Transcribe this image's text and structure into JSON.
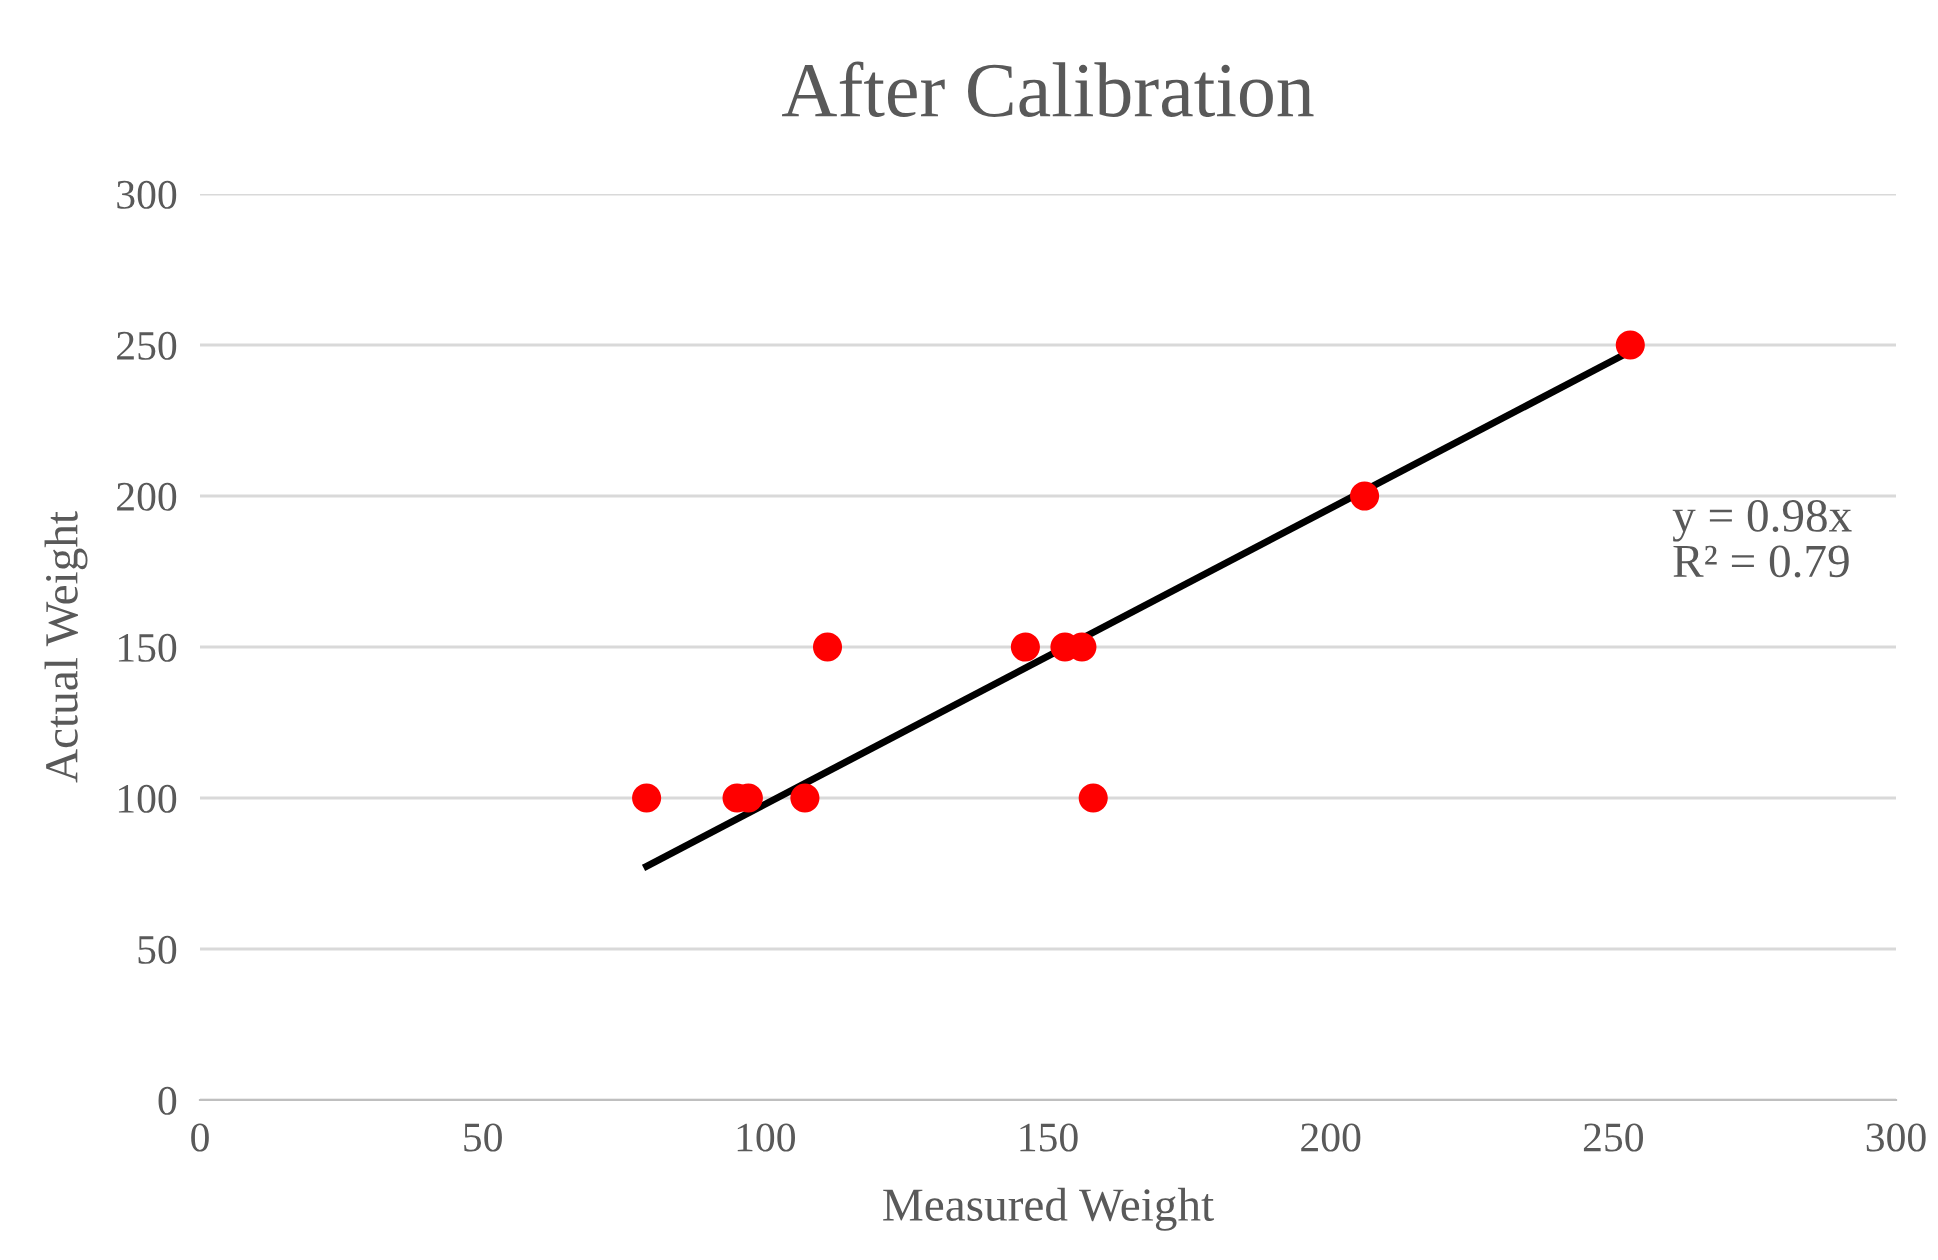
{
  "chart_data": {
    "type": "scatter",
    "title": "After Calibration",
    "xlabel": "Measured Weight",
    "ylabel": "Actual Weight",
    "xlim": [
      0,
      300
    ],
    "xticks": [
      0,
      50,
      100,
      150,
      200,
      250,
      300
    ],
    "ylim": [
      0,
      300
    ],
    "yticks": [
      0,
      50,
      100,
      150,
      200,
      250,
      300
    ],
    "grid": "y",
    "marker": "circle",
    "series": [
      {
        "color": "#ff0000",
        "x": [
          79,
          95,
          97,
          107,
          111,
          146,
          153,
          156,
          158,
          206,
          253
        ],
        "values": [
          100,
          100,
          100,
          100,
          150,
          150,
          150,
          150,
          100,
          200,
          250
        ]
      },
      {
        "type": "line",
        "color": "#000000",
        "line_style": "solid",
        "marker": "none",
        "x": [
          79,
          253
        ],
        "values": [
          77.4,
          247.9
        ]
      }
    ],
    "annotations": [
      "y = 0.98x",
      "R² = 0.79"
    ]
  }
}
